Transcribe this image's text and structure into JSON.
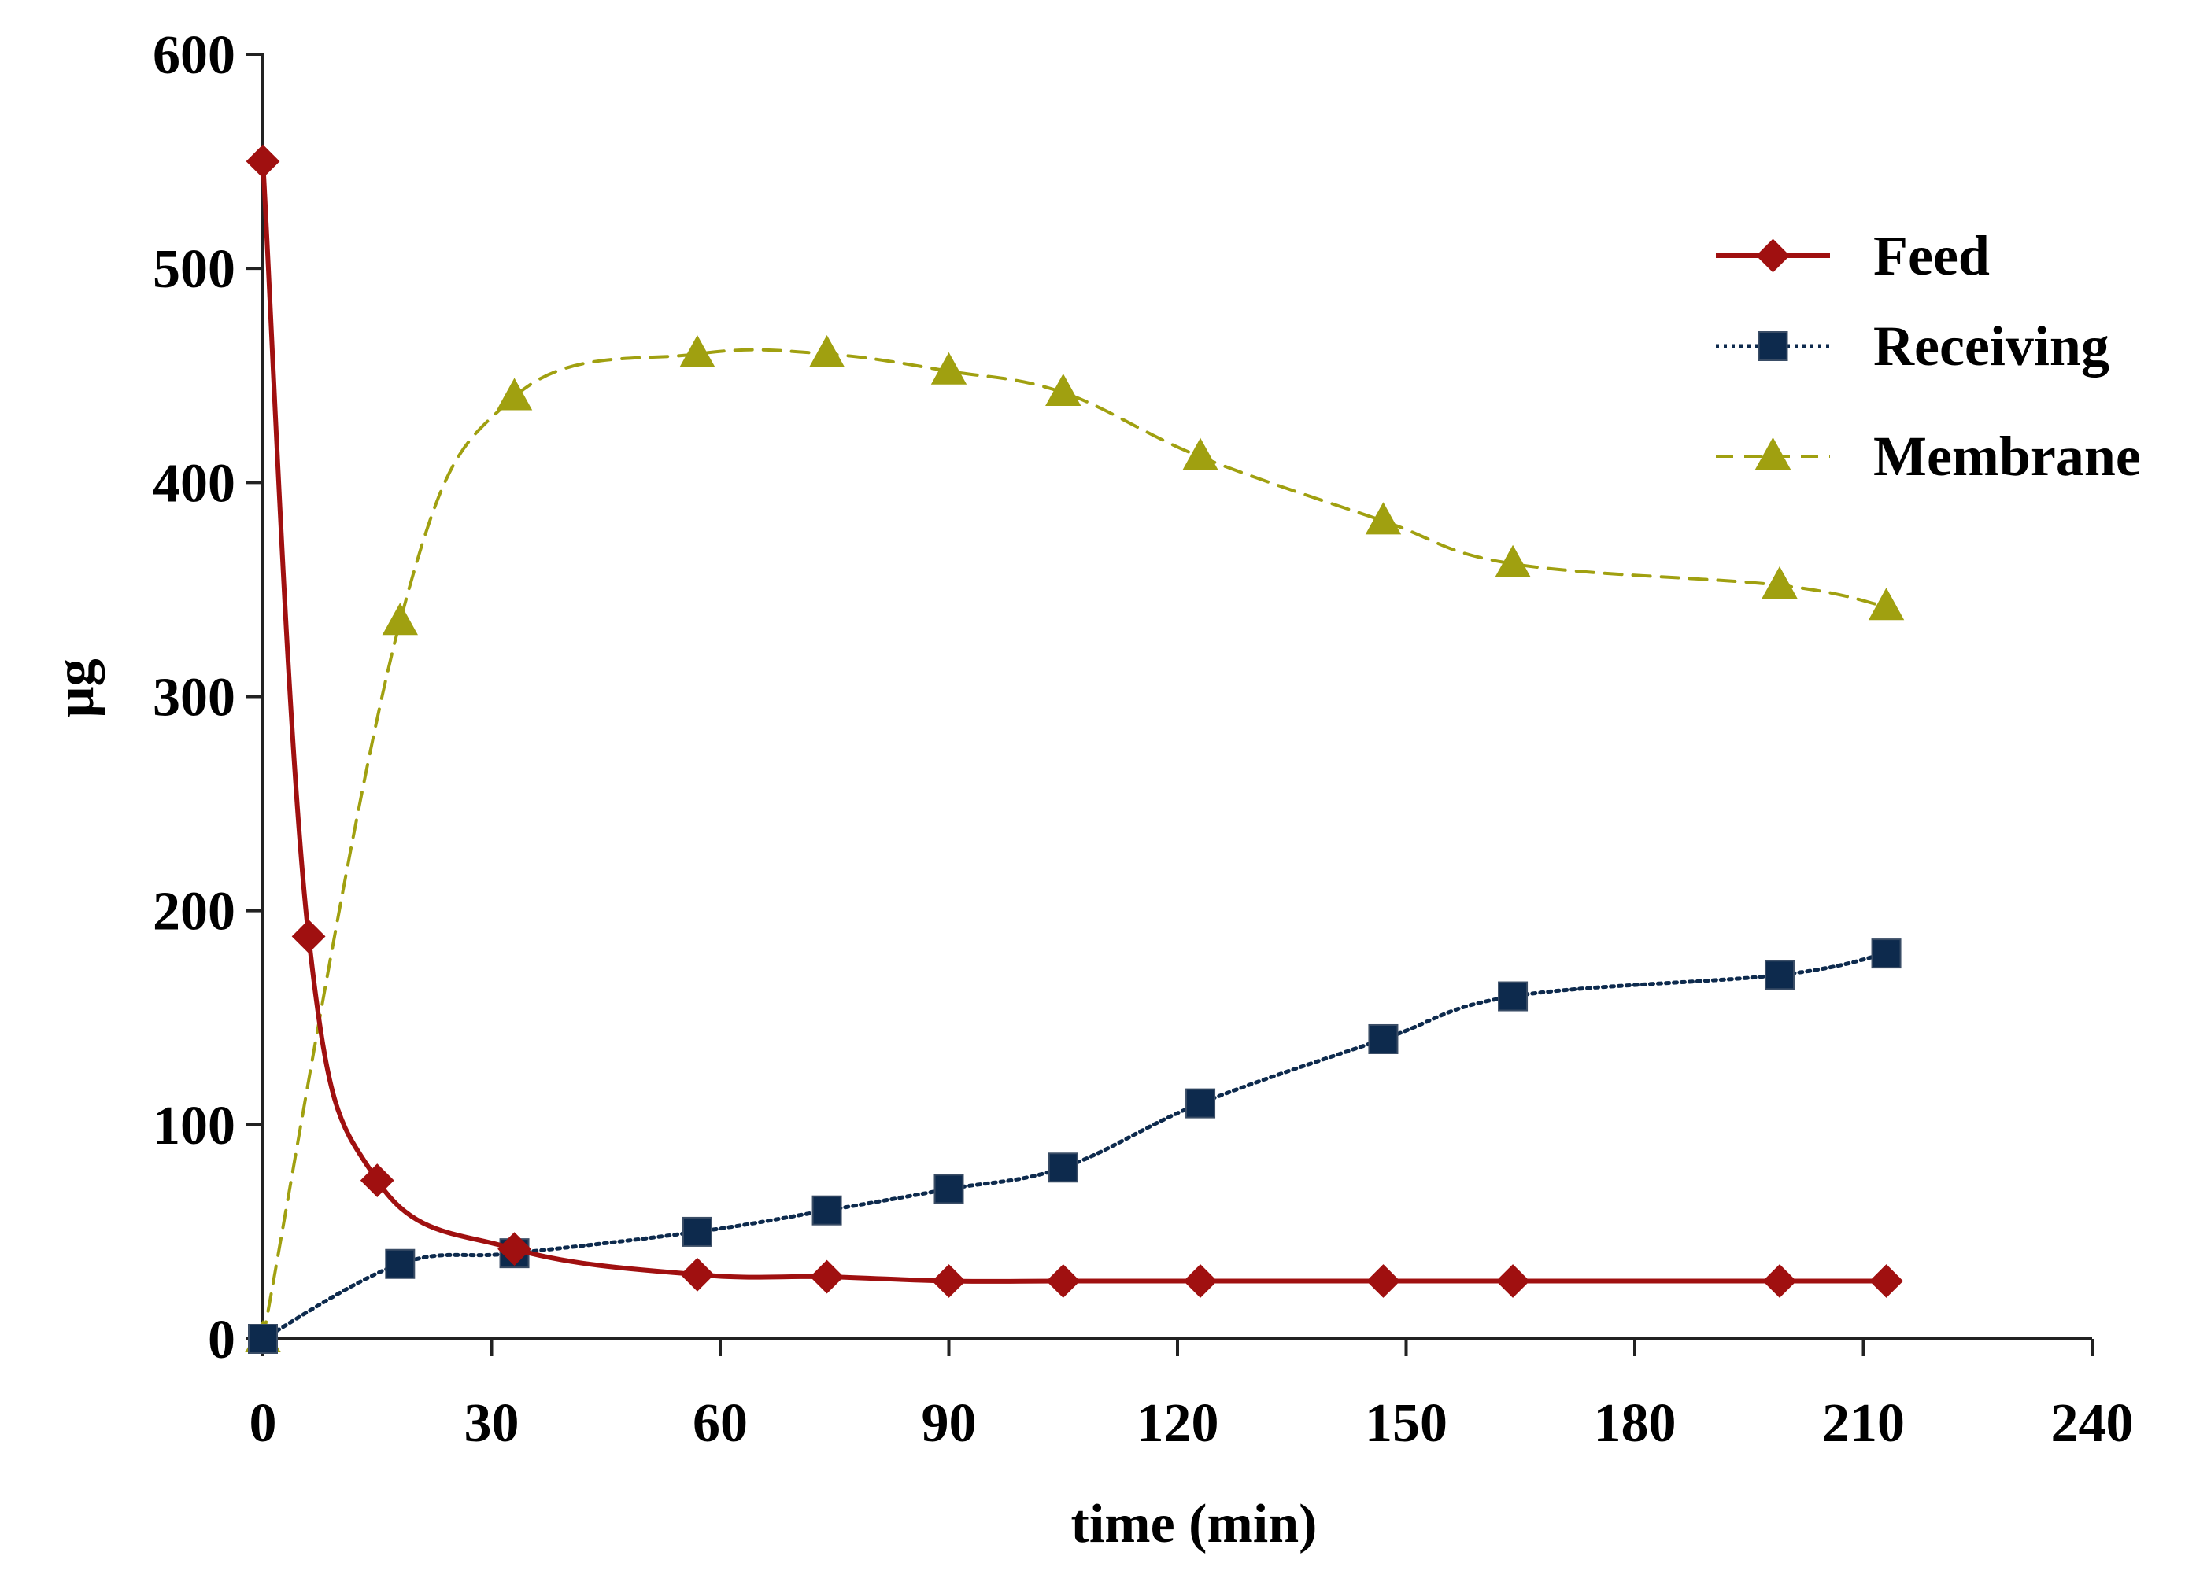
{
  "chart_data": {
    "type": "line",
    "title": "",
    "xlabel": "time (min)",
    "ylabel": "µg",
    "xlim": [
      0,
      240
    ],
    "ylim": [
      0,
      600
    ],
    "xticks": [
      0,
      30,
      60,
      90,
      120,
      150,
      180,
      210,
      240
    ],
    "yticks": [
      0,
      100,
      200,
      300,
      400,
      500,
      600
    ],
    "xtick_labels": [
      "0",
      "30",
      "60",
      "90",
      "120",
      "150",
      "180",
      "210",
      "240"
    ],
    "ytick_labels": [
      "0",
      "100",
      "200",
      "300",
      "400",
      "500",
      "600"
    ],
    "grid": false,
    "legend_position": "top-right",
    "series": [
      {
        "name": "Feed",
        "color": "#a01010",
        "marker": "diamond",
        "line_style": "solid",
        "x": [
          0,
          6,
          15,
          33,
          57,
          74,
          90,
          105,
          123,
          147,
          164,
          199,
          213
        ],
        "y": [
          550,
          188,
          74,
          42,
          30,
          29,
          27,
          27,
          27,
          27,
          27,
          27,
          27
        ]
      },
      {
        "name": "Receiving",
        "color": "#0d2a4d",
        "marker": "square",
        "line_style": "dotted",
        "x": [
          0,
          18,
          33,
          57,
          74,
          90,
          105,
          123,
          147,
          164,
          199,
          213
        ],
        "y": [
          0,
          35,
          40,
          50,
          60,
          70,
          80,
          110,
          140,
          160,
          170,
          180
        ]
      },
      {
        "name": "Membrane",
        "color": "#a0a010",
        "marker": "triangle",
        "line_style": "dashed",
        "x": [
          0,
          18,
          33,
          57,
          74,
          90,
          105,
          123,
          147,
          164,
          199,
          213
        ],
        "y": [
          0,
          335,
          440,
          460,
          460,
          452,
          442,
          412,
          382,
          362,
          352,
          342
        ]
      }
    ]
  }
}
